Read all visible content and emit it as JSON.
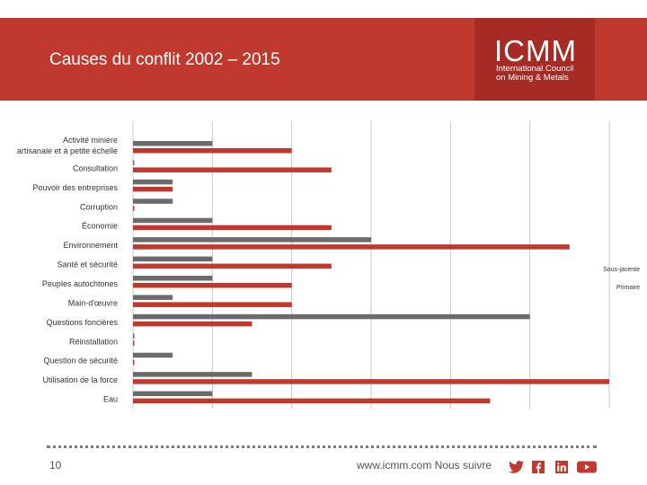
{
  "header": {
    "title": "Causes du conflit 2002 – 2015",
    "logo_big": "ICMM",
    "logo_line1": "International Council",
    "logo_line2": "on Mining & Metals"
  },
  "chart_data": {
    "type": "bar",
    "orientation": "horizontal",
    "title": "Causes du conflit 2002 – 2015",
    "categories": [
      "Activité minière artisanale et à petite échelle",
      "Consultation",
      "Pouvoir des entreprises",
      "Corruption",
      "Économie",
      "Environnement",
      "Santé et sécurité",
      "Peuples autochtones",
      "Main-d'œuvre",
      "Questions foncières",
      "Réinstallation",
      "Question de sécurité",
      "Utilisation de la force",
      "Eau"
    ],
    "series": [
      {
        "name": "Sous-jacente",
        "color": "#6b6b6b",
        "values": [
          2,
          0,
          1,
          1,
          2,
          6,
          2,
          2,
          1,
          10,
          0,
          1,
          3,
          2
        ]
      },
      {
        "name": "Primaire",
        "color": "#c0392f",
        "values": [
          4,
          5,
          1,
          0,
          5,
          11,
          5,
          4,
          4,
          3,
          0,
          0,
          12,
          9
        ]
      }
    ],
    "xlim": [
      0,
      12
    ],
    "grid": true,
    "legend": "right"
  },
  "footer": {
    "page": "10",
    "text": "www.icmm.com Nous suivre",
    "icons": [
      "twitter-icon",
      "facebook-icon",
      "linkedin-icon",
      "youtube-icon"
    ]
  }
}
